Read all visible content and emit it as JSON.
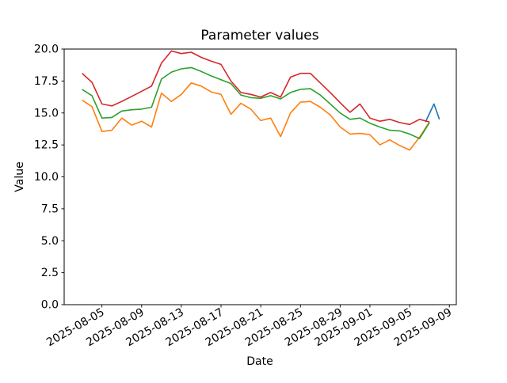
{
  "chart_data": {
    "type": "line",
    "title": "Parameter values",
    "xlabel": "Date",
    "ylabel": "Value",
    "ylim": [
      0.0,
      20.0
    ],
    "grid": false,
    "legend": null,
    "yticks": [
      0.0,
      2.5,
      5.0,
      7.5,
      10.0,
      12.5,
      15.0,
      17.5,
      20.0
    ],
    "xticks": [
      {
        "label": "2025-08-05",
        "offset": 2
      },
      {
        "label": "2025-08-09",
        "offset": 6
      },
      {
        "label": "2025-08-13",
        "offset": 10
      },
      {
        "label": "2025-08-17",
        "offset": 14
      },
      {
        "label": "2025-08-21",
        "offset": 18
      },
      {
        "label": "2025-08-25",
        "offset": 22
      },
      {
        "label": "2025-08-29",
        "offset": 26
      },
      {
        "label": "2025-09-01",
        "offset": 29
      },
      {
        "label": "2025-09-05",
        "offset": 33
      },
      {
        "label": "2025-09-09",
        "offset": 37
      }
    ],
    "x_dates": [
      "2025-08-03",
      "2025-08-04",
      "2025-08-05",
      "2025-08-06",
      "2025-08-07",
      "2025-08-08",
      "2025-08-09",
      "2025-08-10",
      "2025-08-11",
      "2025-08-12",
      "2025-08-13",
      "2025-08-14",
      "2025-08-15",
      "2025-08-16",
      "2025-08-17",
      "2025-08-18",
      "2025-08-19",
      "2025-08-20",
      "2025-08-21",
      "2025-08-22",
      "2025-08-23",
      "2025-08-24",
      "2025-08-25",
      "2025-08-26",
      "2025-08-27",
      "2025-08-28",
      "2025-08-29",
      "2025-08-30",
      "2025-08-31",
      "2025-09-01",
      "2025-09-02",
      "2025-09-03",
      "2025-09-04",
      "2025-09-05",
      "2025-09-06",
      "2025-09-07"
    ],
    "series": [
      {
        "name": "blue-line",
        "color": "#1f77b4",
        "x_offsets": [
          34.6,
          35.45,
          36.0
        ],
        "values": [
          14.3,
          15.7,
          14.5
        ]
      },
      {
        "name": "orange-line",
        "color": "#ff7f0e",
        "values": [
          16.0,
          15.5,
          13.55,
          13.65,
          14.6,
          14.05,
          14.35,
          13.9,
          16.55,
          15.9,
          16.45,
          17.35,
          17.1,
          16.65,
          16.45,
          14.9,
          15.75,
          15.3,
          14.4,
          14.6,
          13.15,
          15.0,
          15.85,
          15.9,
          15.45,
          14.85,
          13.9,
          13.35,
          13.4,
          13.3,
          12.5,
          12.9,
          12.45,
          12.1,
          13.1,
          14.3
        ]
      },
      {
        "name": "green-line",
        "color": "#2ca02c",
        "values": [
          16.85,
          16.35,
          14.6,
          14.65,
          15.15,
          15.25,
          15.3,
          15.45,
          17.65,
          18.2,
          18.45,
          18.55,
          18.25,
          17.9,
          17.6,
          17.3,
          16.4,
          16.2,
          16.15,
          16.35,
          16.1,
          16.6,
          16.85,
          16.9,
          16.4,
          15.7,
          15.0,
          14.5,
          14.6,
          14.2,
          13.9,
          13.65,
          13.6,
          13.35,
          13.0,
          14.25
        ]
      },
      {
        "name": "red-line",
        "color": "#d62728",
        "values": [
          18.1,
          17.4,
          15.7,
          15.55,
          15.9,
          16.3,
          16.7,
          17.1,
          18.9,
          19.85,
          19.65,
          19.75,
          19.35,
          19.05,
          18.8,
          17.5,
          16.6,
          16.45,
          16.25,
          16.6,
          16.25,
          17.8,
          18.1,
          18.1,
          17.35,
          16.6,
          15.8,
          15.05,
          15.7,
          14.6,
          14.35,
          14.5,
          14.25,
          14.1,
          14.5,
          14.3
        ]
      }
    ]
  }
}
